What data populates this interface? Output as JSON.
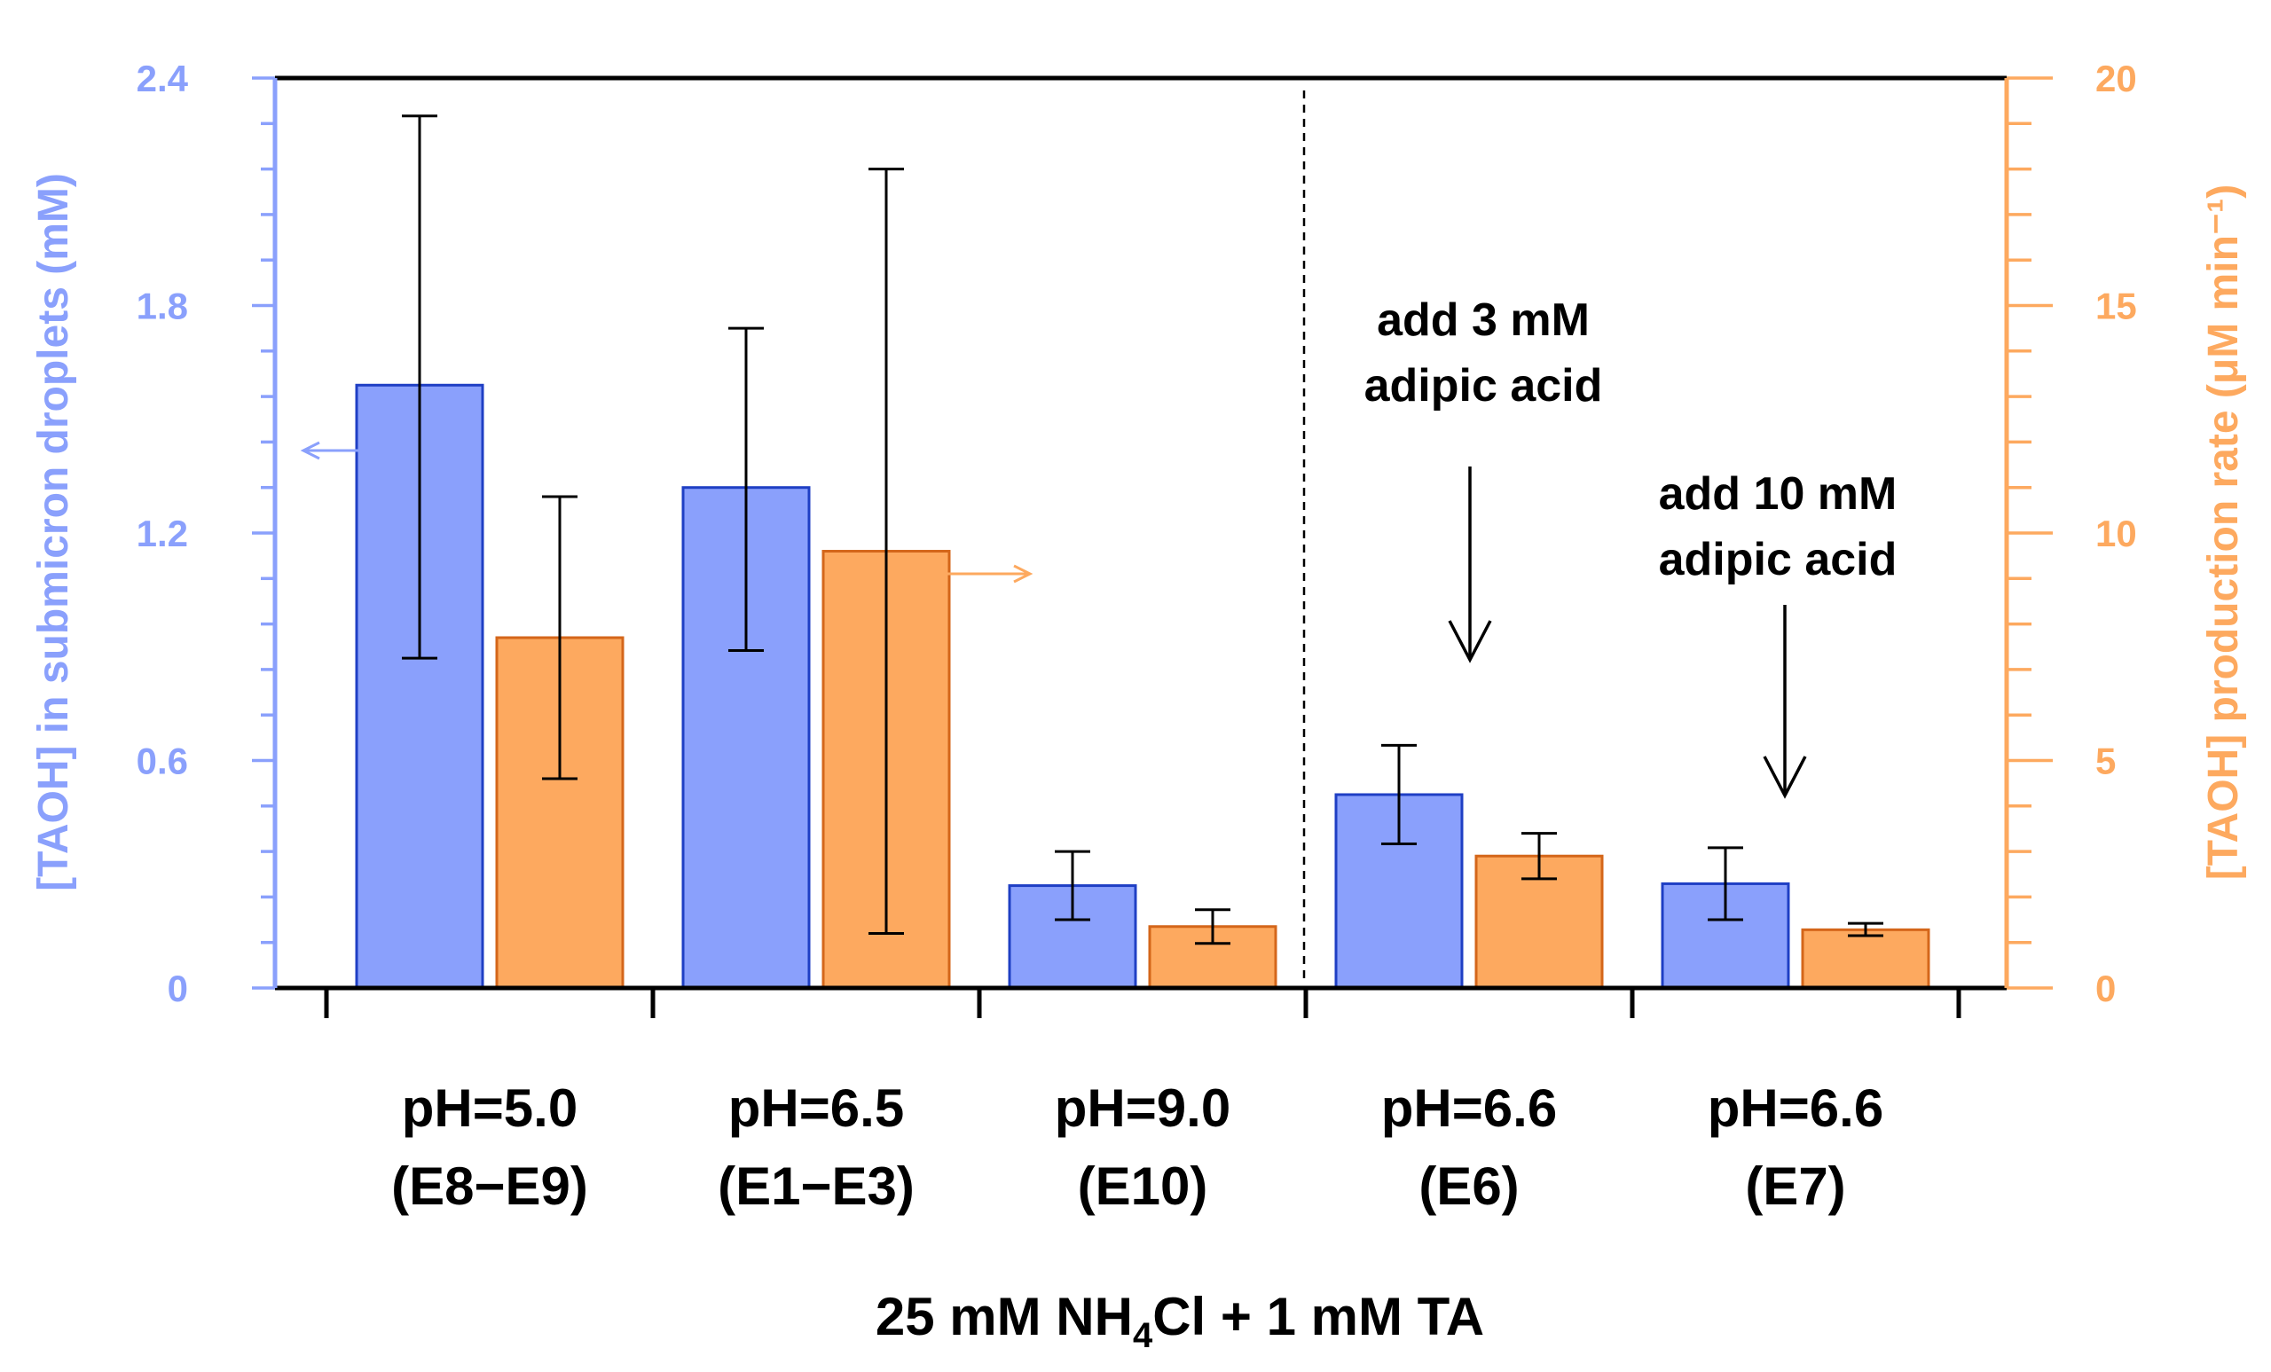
{
  "chart_data": {
    "type": "bar",
    "categories": [
      {
        "line1": "pH=5.0",
        "line2": "(E8−E9)"
      },
      {
        "line1": "pH=6.5",
        "line2": "(E1−E3)"
      },
      {
        "line1": "pH=9.0",
        "line2": "(E10)"
      },
      {
        "line1": "pH=6.6",
        "line2": "(E6)"
      },
      {
        "line1": "pH=6.6",
        "line2": "(E7)"
      }
    ],
    "series": [
      {
        "name": "[TAOH] in submicron droplets",
        "axis": "left",
        "values": [
          1.59,
          1.32,
          0.27,
          0.51,
          0.275
        ],
        "err_low": [
          0.87,
          0.89,
          0.18,
          0.38,
          0.18
        ],
        "err_high": [
          2.3,
          1.74,
          0.36,
          0.64,
          0.37
        ],
        "fill": "#8aa0fc",
        "stroke": "#1f3fc4"
      },
      {
        "name": "[TAOH] production rate",
        "axis": "right",
        "values": [
          7.7,
          9.6,
          1.35,
          2.9,
          1.28
        ],
        "err_low": [
          4.6,
          1.2,
          0.98,
          2.4,
          1.15
        ],
        "err_high": [
          10.8,
          18.0,
          1.72,
          3.4,
          1.42
        ],
        "fill": "#fda95f",
        "stroke": "#d4661a"
      }
    ],
    "left_axis": {
      "label": "[TAOH] in submicron droplets (mM)",
      "ylim": [
        0,
        2.4
      ],
      "ticks": [
        "0",
        "0.6",
        "1.2",
        "1.8",
        "2.4"
      ],
      "color": "#8aa0fc"
    },
    "right_axis": {
      "label": "[TAOH] production rate (μM min⁻¹)",
      "ylim": [
        0,
        20
      ],
      "ticks": [
        "0",
        "5",
        "10",
        "15",
        "20"
      ],
      "color": "#fda95f"
    },
    "xlabel": {
      "pre": "25 mM NH",
      "sub": "4",
      "post": "Cl + 1 mM TA"
    },
    "annotations": [
      {
        "line1": "add 3 mM",
        "line2": "adipic acid",
        "category": 3
      },
      {
        "line1": "add 10 mM",
        "line2": "adipic acid",
        "category": 4
      }
    ],
    "divider_after_category": 2,
    "grid": false
  }
}
